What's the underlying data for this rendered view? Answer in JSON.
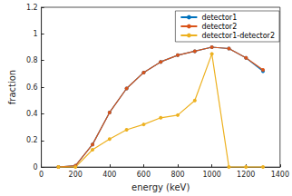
{
  "chart_data": {
    "type": "line",
    "x_label": "energy (keV)",
    "y_label": "fraction",
    "x": [
      100,
      200,
      300,
      400,
      500,
      600,
      700,
      800,
      900,
      1000,
      1100,
      1200,
      1300
    ],
    "series": [
      {
        "name": "detector1",
        "color": "#0072BD",
        "marker": "circle",
        "values": [
          0,
          0.01,
          0.17,
          0.41,
          0.59,
          0.71,
          0.79,
          0.84,
          0.87,
          0.9,
          0.89,
          0.82,
          0.72
        ]
      },
      {
        "name": "detector2",
        "color": "#D95319",
        "marker": "circle",
        "values": [
          0,
          0.01,
          0.17,
          0.41,
          0.59,
          0.71,
          0.79,
          0.84,
          0.87,
          0.9,
          0.89,
          0.82,
          0.73
        ]
      },
      {
        "name": "detector1-detector2",
        "color": "#EDB120",
        "marker": "circle",
        "values": [
          0,
          0,
          0.13,
          0.21,
          0.28,
          0.32,
          0.37,
          0.39,
          0.5,
          0.85,
          0,
          0,
          0
        ]
      }
    ],
    "xlim": [
      0,
      1400
    ],
    "xticks": [
      0,
      200,
      400,
      600,
      800,
      1000,
      1200,
      1400
    ],
    "ylim": [
      0,
      1.2
    ],
    "yticks": [
      0,
      0.2,
      0.4,
      0.6,
      0.8,
      1,
      1.2
    ],
    "grid": false,
    "legend": "top-right"
  }
}
